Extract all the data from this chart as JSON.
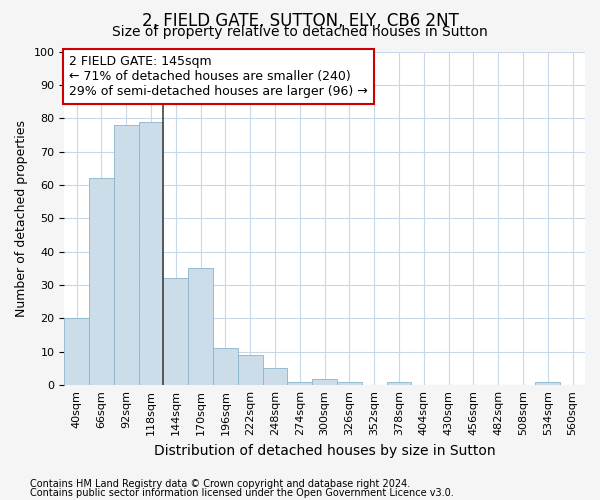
{
  "title1": "2, FIELD GATE, SUTTON, ELY, CB6 2NT",
  "title2": "Size of property relative to detached houses in Sutton",
  "xlabel": "Distribution of detached houses by size in Sutton",
  "ylabel": "Number of detached properties",
  "bar_values": [
    20,
    62,
    78,
    79,
    32,
    35,
    11,
    9,
    5,
    1,
    2,
    1,
    0,
    1,
    0,
    0,
    0,
    0,
    0,
    1,
    0
  ],
  "bin_labels": [
    "40sqm",
    "66sqm",
    "92sqm",
    "118sqm",
    "144sqm",
    "170sqm",
    "196sqm",
    "222sqm",
    "248sqm",
    "274sqm",
    "300sqm",
    "326sqm",
    "352sqm",
    "378sqm",
    "404sqm",
    "430sqm",
    "456sqm",
    "482sqm",
    "508sqm",
    "534sqm",
    "560sqm"
  ],
  "bar_color": "#ccdde9",
  "bar_edge_color": "#8ab4cc",
  "vline_x": 4,
  "vline_color": "#444444",
  "annotation_text": "2 FIELD GATE: 145sqm\n← 71% of detached houses are smaller (240)\n29% of semi-detached houses are larger (96) →",
  "annotation_box_color": "#ffffff",
  "annotation_box_edge_color": "#cc0000",
  "ylim": [
    0,
    100
  ],
  "yticks": [
    0,
    10,
    20,
    30,
    40,
    50,
    60,
    70,
    80,
    90,
    100
  ],
  "footer1": "Contains HM Land Registry data © Crown copyright and database right 2024.",
  "footer2": "Contains public sector information licensed under the Open Government Licence v3.0.",
  "bg_color": "#f5f5f5",
  "plot_bg_color": "#ffffff",
  "grid_color": "#c8d8e8",
  "title1_fontsize": 12,
  "title2_fontsize": 10,
  "xlabel_fontsize": 10,
  "ylabel_fontsize": 9,
  "tick_fontsize": 8,
  "footer_fontsize": 7,
  "annotation_fontsize": 9
}
